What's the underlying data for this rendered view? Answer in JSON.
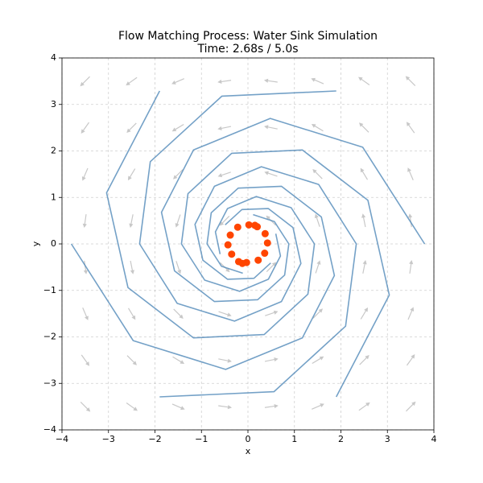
{
  "chart_data": {
    "type": "flow",
    "title": "Flow Matching Process: Water Sink Simulation",
    "subtitle": "Time: 2.68s / 5.0s",
    "x_label": "x",
    "y_label": "y",
    "xlim": [
      -4,
      4
    ],
    "ylim": [
      -4,
      4
    ],
    "xticks": [
      {
        "value": -4,
        "label": "−4"
      },
      {
        "value": -3,
        "label": "−3"
      },
      {
        "value": -2,
        "label": "−2"
      },
      {
        "value": -1,
        "label": "−1"
      },
      0,
      1,
      2,
      3,
      4
    ],
    "yticks": [
      {
        "value": -4,
        "label": "−4"
      },
      {
        "value": -3,
        "label": "−3"
      },
      {
        "value": -2,
        "label": "−2"
      },
      {
        "value": -1,
        "label": "−1"
      },
      0,
      1,
      2,
      3,
      4
    ],
    "grid": true,
    "quiver": {
      "color": "#c8c8c8",
      "x": [
        -3.5,
        -2.5,
        -1.5,
        -0.5,
        0.5,
        1.5,
        2.5,
        3.5
      ],
      "y": [
        3.5,
        2.5,
        1.5,
        0.5,
        -0.5,
        -1.5,
        -2.5,
        -3.5
      ],
      "angle": [
        [
          225,
          215.5,
          203.2,
          188.1,
          171.9,
          156.8,
          144.5,
          135
        ],
        [
          234.5,
          225,
          211,
          191.3,
          168.7,
          149,
          135,
          125.5
        ],
        [
          246.8,
          239,
          225,
          198.4,
          161.6,
          135,
          121,
          113.2
        ],
        [
          261.9,
          258.7,
          251.6,
          225,
          135,
          108.4,
          101.3,
          98.1
        ],
        [
          278.1,
          281.3,
          288.4,
          315,
          45,
          71.6,
          78.7,
          81.9
        ],
        [
          293.2,
          301,
          315,
          341.6,
          18.4,
          45,
          59,
          66.8
        ],
        [
          305.5,
          315,
          329,
          348.7,
          11.3,
          31,
          45,
          54.5
        ],
        [
          315,
          324.5,
          336.8,
          351.9,
          8.1,
          23.2,
          35.5,
          45
        ]
      ]
    },
    "trajectory_color": "#4682b4",
    "trajectories": [
      {
        "x": [
          3.8,
          2.47,
          0.48,
          -1.17,
          -1.86,
          -1.58,
          -0.72,
          0.21,
          0.79,
          0.88,
          0.57,
          0.11
        ],
        "y": [
          0,
          2.08,
          2.7,
          2.02,
          0.68,
          -0.58,
          -1.24,
          -1.2,
          -0.67,
          0,
          0.48,
          0.63
        ]
      },
      {
        "x": [
          1.9,
          -0.56,
          -2.1,
          -2.33,
          -1.52,
          -0.29,
          0.72,
          1.14,
          0.97,
          0.44,
          -0.13,
          -0.49
        ],
        "y": [
          3.29,
          3.18,
          1.77,
          0,
          -1.28,
          -1.66,
          -1.24,
          -0.42,
          0.35,
          0.76,
          0.74,
          0.41
        ]
      },
      {
        "x": [
          -1.9,
          -3.04,
          -2.58,
          -1.17,
          0.35,
          1.29,
          1.43,
          0.93,
          0.18,
          -0.44,
          -0.7,
          -0.6
        ],
        "y": [
          3.29,
          1.1,
          -0.94,
          -2.02,
          -1.95,
          -1.08,
          0,
          0.78,
          1.02,
          0.76,
          0.26,
          -0.22
        ]
      },
      {
        "x": [
          -3.8,
          -2.47,
          -0.48,
          1.17,
          1.86,
          1.58,
          0.72,
          -0.21,
          -0.79,
          -0.88,
          -0.57,
          -0.11
        ],
        "y": [
          0,
          -2.08,
          -2.7,
          -2.02,
          -0.68,
          0.58,
          1.24,
          1.2,
          0.67,
          0,
          -0.48,
          -0.63
        ]
      },
      {
        "x": [
          -1.9,
          0.56,
          2.1,
          2.33,
          1.52,
          0.29,
          -0.72,
          -1.14,
          -0.97,
          -0.44,
          0.13,
          0.49
        ],
        "y": [
          -3.29,
          -3.18,
          -1.77,
          0,
          1.28,
          1.66,
          1.24,
          0.42,
          -0.35,
          -0.76,
          -0.74,
          -0.41
        ]
      },
      {
        "x": [
          1.9,
          3.04,
          2.58,
          1.17,
          -0.35,
          -1.29,
          -1.43,
          -0.93,
          -0.18,
          0.44,
          0.7,
          0.6
        ],
        "y": [
          -3.29,
          -1.1,
          0.94,
          2.02,
          1.95,
          1.08,
          0,
          -0.78,
          -1.02,
          -0.76,
          -0.26,
          0.22
        ]
      }
    ],
    "particles": {
      "color": "#ff4500",
      "x": [
        0.42,
        0.37,
        0.2,
        0.02,
        -0.22,
        -0.38,
        -0.43,
        -0.35,
        -0.2,
        -0.03,
        0.22,
        0.36,
        0.15,
        -0.12
      ],
      "y": [
        0.02,
        0.22,
        0.37,
        0.41,
        0.36,
        0.19,
        -0.02,
        -0.22,
        -0.38,
        -0.4,
        -0.35,
        -0.2,
        0.4,
        -0.42
      ]
    }
  }
}
